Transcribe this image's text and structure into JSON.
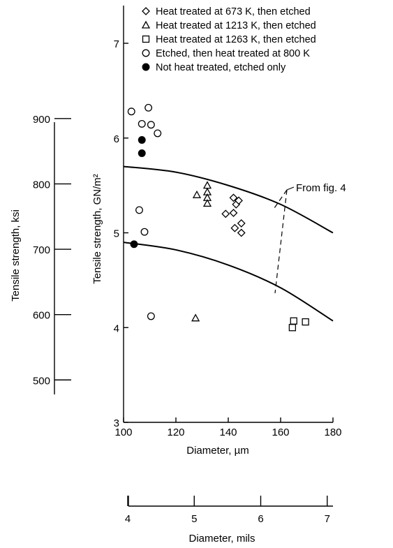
{
  "chart_data": {
    "type": "scatter",
    "title": "",
    "xlabel": "Diameter, µm",
    "ylabel": "Tensile strength, GN/m²",
    "xlim": [
      100,
      180
    ],
    "ylim": [
      3,
      7.5
    ],
    "x_ticks": [
      "100",
      "120",
      "140",
      "160",
      "180"
    ],
    "y_ticks": [
      "3",
      "4",
      "5",
      "6",
      "7"
    ],
    "grid": false,
    "legend_position": "top-right",
    "secondary_y_axis": {
      "label": "Tensile strength, ksi",
      "ticks": [
        "500",
        "600",
        "700",
        "800",
        "900"
      ],
      "tick_values": [
        500,
        600,
        700,
        800,
        900
      ],
      "conversion_gn_per_ksi": 0.006895
    },
    "secondary_x_axis": {
      "label": "Diameter, mils",
      "ticks": [
        "4",
        "5",
        "6",
        "7"
      ],
      "tick_values": [
        4,
        5,
        6,
        7
      ],
      "conversion_um_per_mil": 25.4
    },
    "series": [
      {
        "name": "Heat treated at 673 K, then etched",
        "marker": "diamond",
        "points": [
          [
            142,
            5.37
          ],
          [
            143,
            5.3
          ],
          [
            144,
            5.34
          ],
          [
            139,
            5.2
          ],
          [
            142,
            5.21
          ],
          [
            145,
            5.1
          ],
          [
            142.5,
            5.05
          ],
          [
            145,
            5.0
          ]
        ]
      },
      {
        "name": "Heat treated at 1213 K, then etched",
        "marker": "triangle",
        "points": [
          [
            132,
            5.5
          ],
          [
            132,
            5.43
          ],
          [
            128,
            5.4
          ],
          [
            132,
            5.37
          ],
          [
            132,
            5.31
          ],
          [
            127.5,
            4.1
          ]
        ]
      },
      {
        "name": "Heat treated at 1263 K, then etched",
        "marker": "square",
        "points": [
          [
            165,
            4.07
          ],
          [
            169.5,
            4.06
          ],
          [
            164.5,
            4.0
          ]
        ]
      },
      {
        "name": "Etched, then heat treated at 800 K",
        "marker": "circle-open",
        "points": [
          [
            103,
            6.28
          ],
          [
            107,
            6.15
          ],
          [
            109.5,
            6.32
          ],
          [
            110.5,
            6.14
          ],
          [
            113,
            6.05
          ],
          [
            106,
            5.24
          ],
          [
            108,
            5.01
          ],
          [
            110.5,
            4.12
          ]
        ]
      },
      {
        "name": "Not heat treated, etched only",
        "marker": "circle-filled",
        "points": [
          [
            107,
            5.98
          ],
          [
            107,
            5.84
          ],
          [
            104,
            4.88
          ]
        ]
      }
    ],
    "curves": [
      {
        "points": [
          [
            100,
            5.7
          ],
          [
            120,
            5.64
          ],
          [
            140,
            5.5
          ],
          [
            160,
            5.3
          ],
          [
            180,
            5.0
          ]
        ]
      },
      {
        "points": [
          [
            100,
            4.9
          ],
          [
            120,
            4.82
          ],
          [
            140,
            4.66
          ],
          [
            160,
            4.42
          ],
          [
            180,
            4.07
          ]
        ]
      }
    ],
    "annotation": "From fig. 4"
  }
}
